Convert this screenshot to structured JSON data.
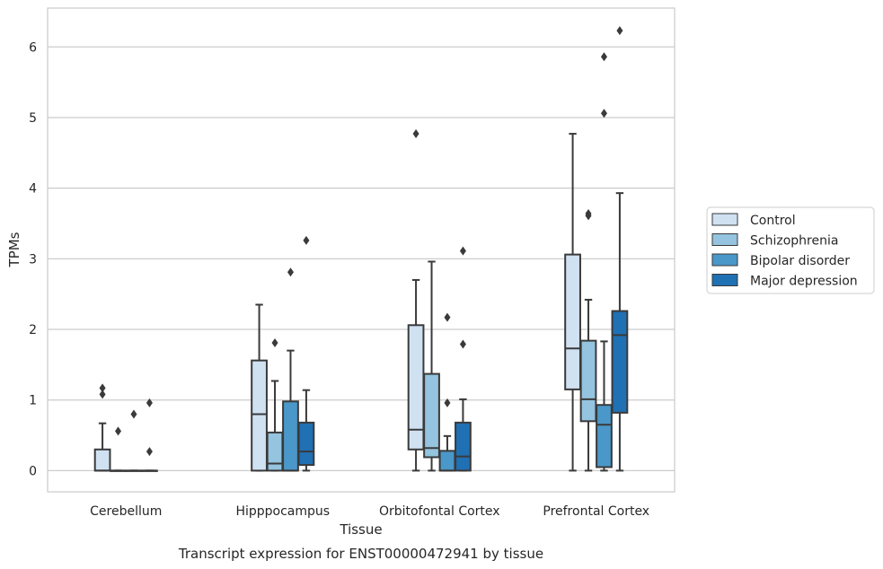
{
  "chart_data": {
    "type": "box",
    "title": "",
    "caption": "Transcript expression for ENST00000472941 by tissue",
    "xlabel": "Tissue",
    "ylabel": "TPMs",
    "ylim": [
      -0.3,
      6.55
    ],
    "yticks": [
      0,
      1,
      2,
      3,
      4,
      5,
      6
    ],
    "grid": "horizontal",
    "legend_position": "right",
    "categories": [
      "Cerebellum",
      "Hipppocampus",
      "Orbitofontal Cortex",
      "Prefrontal Cortex"
    ],
    "series": [
      {
        "name": "Control",
        "color": "#d0e1f2",
        "boxes": [
          {
            "q1": 0.0,
            "median": 0.0,
            "q3": 0.3,
            "whisker_low": 0.0,
            "whisker_high": 0.67,
            "outliers": [
              1.08,
              1.17
            ]
          },
          {
            "q1": 0.0,
            "median": 0.8,
            "q3": 1.56,
            "whisker_low": 0.0,
            "whisker_high": 2.35,
            "outliers": []
          },
          {
            "q1": 0.3,
            "median": 0.58,
            "q3": 2.06,
            "whisker_low": 0.0,
            "whisker_high": 2.7,
            "outliers": [
              4.77
            ]
          },
          {
            "q1": 1.15,
            "median": 1.73,
            "q3": 3.06,
            "whisker_low": 0.0,
            "whisker_high": 4.77,
            "outliers": []
          }
        ]
      },
      {
        "name": "Schizophrenia",
        "color": "#94c4df",
        "boxes": [
          {
            "q1": 0.0,
            "median": 0.0,
            "q3": 0.0,
            "whisker_low": 0.0,
            "whisker_high": 0.0,
            "outliers": [
              0.56
            ]
          },
          {
            "q1": 0.0,
            "median": 0.1,
            "q3": 0.54,
            "whisker_low": 0.0,
            "whisker_high": 1.27,
            "outliers": [
              1.81
            ]
          },
          {
            "q1": 0.19,
            "median": 0.32,
            "q3": 1.37,
            "whisker_low": 0.0,
            "whisker_high": 2.96,
            "outliers": []
          },
          {
            "q1": 0.7,
            "median": 1.01,
            "q3": 1.84,
            "whisker_low": 0.0,
            "whisker_high": 2.42,
            "outliers": [
              3.61,
              3.64
            ]
          }
        ]
      },
      {
        "name": "Bipolar disorder",
        "color": "#4a98c9",
        "boxes": [
          {
            "q1": 0.0,
            "median": 0.0,
            "q3": 0.0,
            "whisker_low": 0.0,
            "whisker_high": 0.0,
            "outliers": [
              0.8
            ]
          },
          {
            "q1": 0.0,
            "median": 0.0,
            "q3": 0.98,
            "whisker_low": 0.0,
            "whisker_high": 1.7,
            "outliers": [
              2.81
            ]
          },
          {
            "q1": 0.0,
            "median": 0.0,
            "q3": 0.28,
            "whisker_low": 0.0,
            "whisker_high": 0.49,
            "outliers": [
              0.96,
              2.17
            ]
          },
          {
            "q1": 0.05,
            "median": 0.65,
            "q3": 0.93,
            "whisker_low": 0.0,
            "whisker_high": 1.83,
            "outliers": [
              5.06,
              5.86
            ]
          }
        ]
      },
      {
        "name": "Major depression",
        "color": "#2070b4",
        "boxes": [
          {
            "q1": 0.0,
            "median": 0.0,
            "q3": 0.0,
            "whisker_low": 0.0,
            "whisker_high": 0.0,
            "outliers": [
              0.27,
              0.96
            ]
          },
          {
            "q1": 0.08,
            "median": 0.27,
            "q3": 0.68,
            "whisker_low": 0.0,
            "whisker_high": 1.14,
            "outliers": [
              3.26
            ]
          },
          {
            "q1": 0.0,
            "median": 0.2,
            "q3": 0.68,
            "whisker_low": 0.0,
            "whisker_high": 1.01,
            "outliers": [
              1.79,
              3.11
            ]
          },
          {
            "q1": 0.82,
            "median": 1.92,
            "q3": 2.26,
            "whisker_low": 0.0,
            "whisker_high": 3.93,
            "outliers": [
              6.23
            ]
          }
        ]
      }
    ]
  }
}
